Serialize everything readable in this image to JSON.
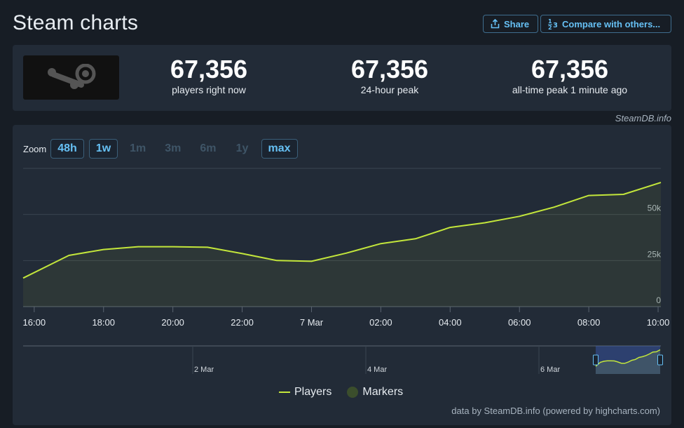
{
  "header": {
    "title": "Steam charts",
    "share_label": "Share",
    "compare_label": "Compare with others..."
  },
  "stats": {
    "current": {
      "value": "67,356",
      "label": "players right now"
    },
    "peak_24h": {
      "value": "67,356",
      "label": "24-hour peak"
    },
    "all_time": {
      "value": "67,356",
      "label": "all-time peak 1 minute ago"
    }
  },
  "credit": "SteamDB.info",
  "zoom": {
    "label": "Zoom",
    "options": [
      {
        "label": "48h",
        "active": true
      },
      {
        "label": "1w",
        "active": true
      },
      {
        "label": "1m",
        "active": false
      },
      {
        "label": "3m",
        "active": false
      },
      {
        "label": "6m",
        "active": false
      },
      {
        "label": "1y",
        "active": false
      },
      {
        "label": "max",
        "active": true
      }
    ]
  },
  "legend": {
    "players": "Players",
    "markers": "Markers"
  },
  "footer_credit": "data by SteamDB.info (powered by highcharts.com)",
  "colors": {
    "line": "#c3e63b",
    "accent": "#66c0f4",
    "panel": "#222b37",
    "background": "#171d25"
  },
  "chart_data": {
    "type": "line",
    "x_ticks": [
      {
        "hour": 0,
        "label": "16:00"
      },
      {
        "hour": 2,
        "label": "18:00"
      },
      {
        "hour": 4,
        "label": "20:00"
      },
      {
        "hour": 6,
        "label": "22:00"
      },
      {
        "hour": 8,
        "label": "7 Mar"
      },
      {
        "hour": 10,
        "label": "02:00"
      },
      {
        "hour": 12,
        "label": "04:00"
      },
      {
        "hour": 14,
        "label": "06:00"
      },
      {
        "hour": 16,
        "label": "08:00"
      },
      {
        "hour": 18,
        "label": "10:00"
      }
    ],
    "y_ticks": [
      {
        "value": 0,
        "label": "0"
      },
      {
        "value": 25000,
        "label": "25k"
      },
      {
        "value": 50000,
        "label": "50k"
      }
    ],
    "ylim": [
      0,
      75000
    ],
    "xlim": [
      -0.32,
      18.08
    ],
    "series": [
      {
        "name": "Players",
        "x": [
          -0.32,
          1,
          2,
          3,
          4,
          5,
          6,
          7,
          8,
          9,
          10,
          11,
          12,
          13,
          14,
          15,
          16,
          17,
          18.08
        ],
        "values": [
          15500,
          27800,
          31000,
          32500,
          32500,
          32200,
          28800,
          25000,
          24600,
          29000,
          34200,
          36800,
          43000,
          45500,
          49000,
          54000,
          60300,
          60900,
          67356
        ]
      }
    ],
    "navigator": {
      "labels": [
        "2 Mar",
        "4 Mar",
        "6 Mar"
      ]
    },
    "grid": true,
    "legend_position": "bottom-center"
  }
}
